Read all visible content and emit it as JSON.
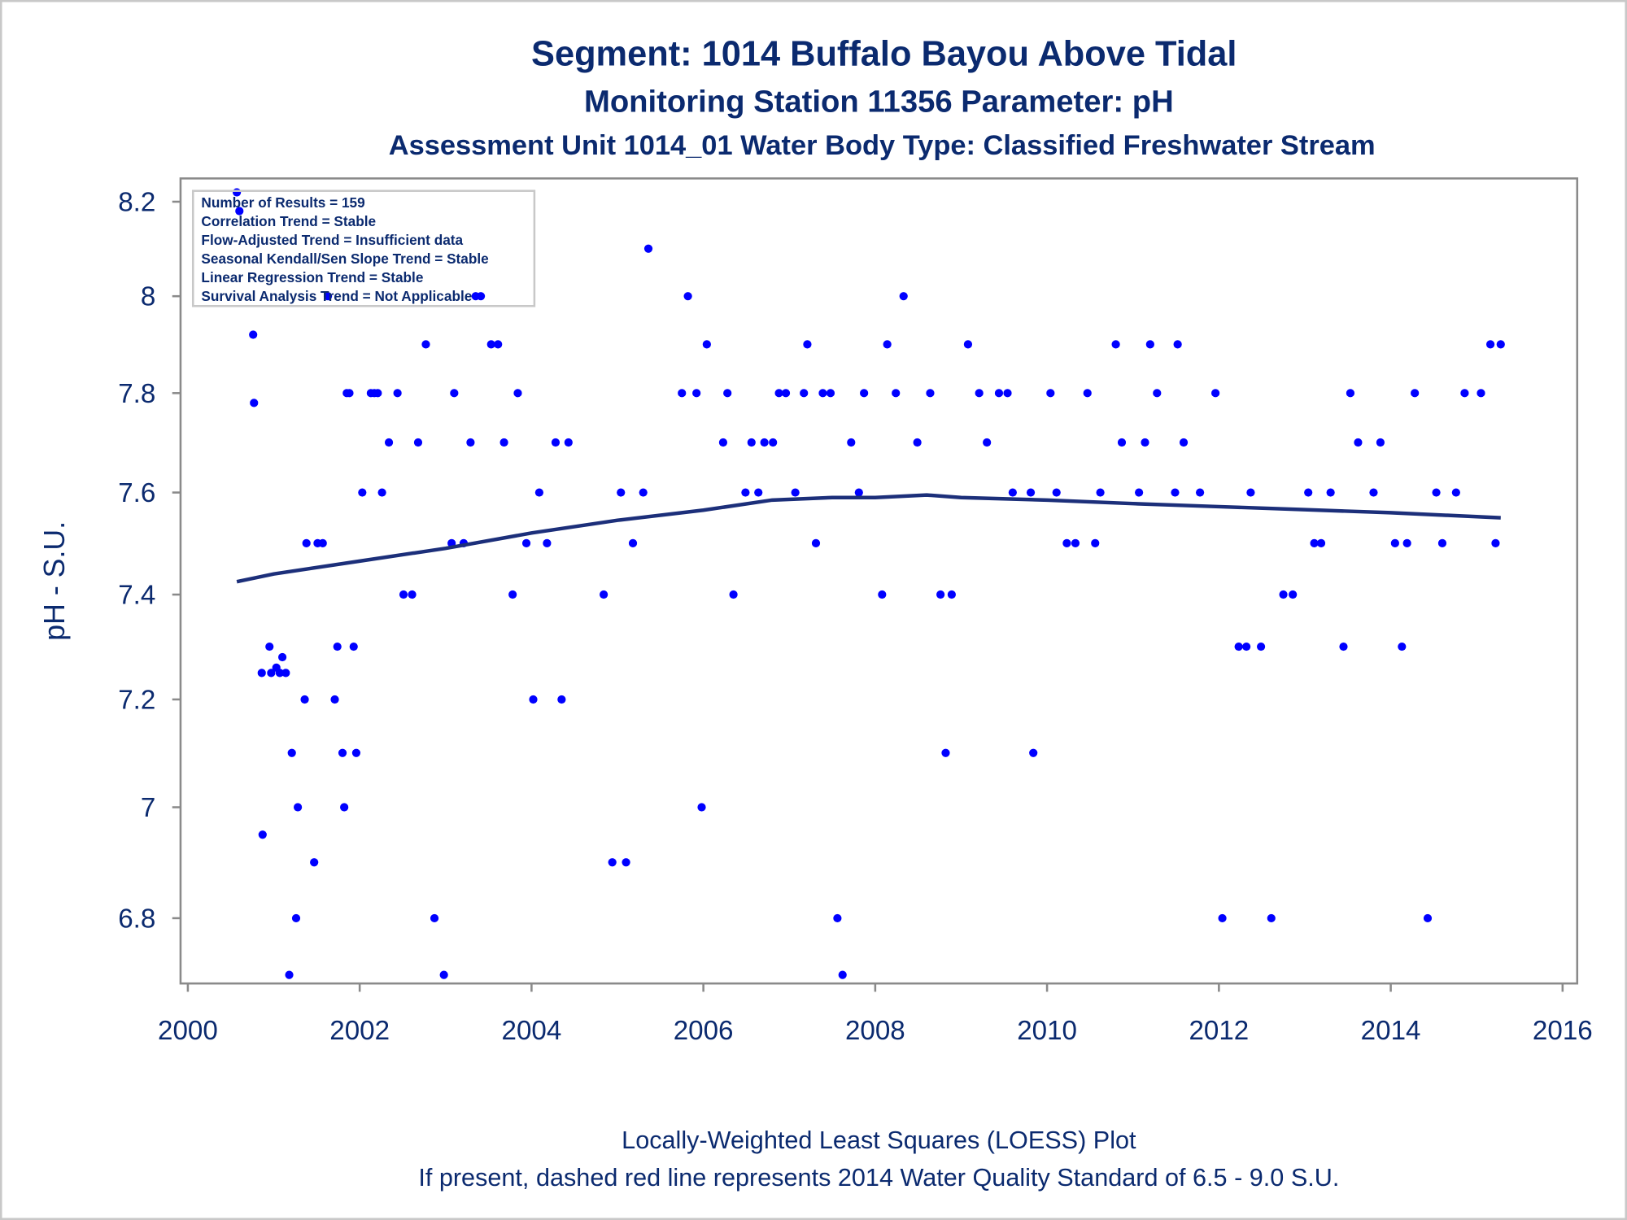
{
  "chart_data": {
    "type": "scatter",
    "title": "Segment: 1014  Buffalo Bayou Above Tidal",
    "subtitle": "Monitoring Station 11356 Parameter: pH",
    "subtitle2": "Assessment Unit 1014_01   Water Body Type: Classified Freshwater Stream",
    "y_label": "pH - S.U.",
    "annotations": [
      "Number of Results = 159",
      "Correlation Trend = Stable",
      "Flow-Adjusted Trend = Insufficient data",
      "Seasonal Kendall/Sen Slope Trend = Stable",
      "Linear Regression Trend = Stable",
      "Survival Analysis Trend = Not Applicable"
    ],
    "footnotes": [
      "Locally-Weighted Least Squares (LOESS) Plot",
      "If present, dashed red line represents 2014 Water Quality Standard of 6.5 - 9.0 S.U."
    ],
    "xlim": [
      1999.915,
      2016.17
    ],
    "xticks": [
      2000,
      2002,
      2004,
      2006,
      2008,
      2010,
      2012,
      2014,
      2016
    ],
    "ylim": [
      6.685,
      8.25
    ],
    "yticks": [
      6.8,
      7,
      7.2,
      7.4,
      7.6,
      7.8,
      8,
      8.2
    ],
    "ylog": true,
    "grid": false,
    "series": [
      {
        "type": "scatter",
        "color": "#0000ff",
        "x": [
          2000.57,
          2000.6,
          2000.76,
          2000.77,
          2000.86,
          2000.87,
          2000.95,
          2000.97,
          2001.03,
          2001.07,
          2001.1,
          2001.14,
          2001.18,
          2001.21,
          2001.26,
          2001.28,
          2001.36,
          2001.38,
          2001.47,
          2001.51,
          2001.57,
          2001.63,
          2001.71,
          2001.74,
          2001.8,
          2001.82,
          2001.85,
          2001.88,
          2001.93,
          2001.96,
          2002.03,
          2002.13,
          2002.17,
          2002.21,
          2002.26,
          2002.34,
          2002.44,
          2002.51,
          2002.61,
          2002.68,
          2002.77,
          2002.87,
          2002.98,
          2003.07,
          2003.1,
          2003.21,
          2003.29,
          2003.35,
          2003.41,
          2003.53,
          2003.61,
          2003.68,
          2003.78,
          2003.84,
          2003.94,
          2004.02,
          2004.09,
          2004.18,
          2004.28,
          2004.35,
          2004.43,
          2004.84,
          2004.94,
          2005.04,
          2005.1,
          2005.18,
          2005.3,
          2005.36,
          2005.75,
          2005.82,
          2005.92,
          2005.98,
          2006.04,
          2006.23,
          2006.28,
          2006.35,
          2006.49,
          2006.56,
          2006.64,
          2006.71,
          2006.81,
          2006.88,
          2006.96,
          2007.07,
          2007.17,
          2007.21,
          2007.31,
          2007.39,
          2007.48,
          2007.56,
          2007.62,
          2007.72,
          2007.81,
          2007.87,
          2008.08,
          2008.14,
          2008.24,
          2008.33,
          2008.49,
          2008.64,
          2008.76,
          2008.82,
          2008.89,
          2009.08,
          2009.21,
          2009.3,
          2009.44,
          2009.54,
          2009.6,
          2009.81,
          2009.84,
          2010.04,
          2010.11,
          2010.23,
          2010.33,
          2010.47,
          2010.56,
          2010.62,
          2010.8,
          2010.87,
          2011.07,
          2011.14,
          2011.2,
          2011.28,
          2011.49,
          2011.52,
          2011.59,
          2011.78,
          2011.96,
          2012.04,
          2012.23,
          2012.32,
          2012.37,
          2012.49,
          2012.61,
          2012.75,
          2012.86,
          2013.04,
          2013.11,
          2013.19,
          2013.3,
          2013.45,
          2013.53,
          2013.62,
          2013.8,
          2013.88,
          2014.05,
          2014.13,
          2014.19,
          2014.28,
          2014.43,
          2014.53,
          2014.6,
          2014.76,
          2014.86,
          2015.05,
          2015.16,
          2015.22,
          2015.28
        ],
        "values": [
          8.22,
          8.18,
          7.92,
          7.78,
          7.25,
          6.95,
          7.3,
          7.25,
          7.26,
          7.25,
          7.28,
          7.25,
          6.7,
          7.1,
          6.8,
          7.0,
          7.2,
          7.5,
          6.9,
          7.5,
          7.5,
          8.0,
          7.2,
          7.3,
          7.1,
          7.0,
          7.8,
          7.8,
          7.3,
          7.1,
          7.6,
          7.8,
          7.8,
          7.8,
          7.6,
          7.7,
          7.8,
          7.4,
          7.4,
          7.7,
          7.9,
          6.8,
          6.7,
          7.5,
          7.8,
          7.5,
          7.7,
          8.0,
          8.0,
          7.9,
          7.9,
          7.7,
          7.4,
          7.8,
          7.5,
          7.2,
          7.6,
          7.5,
          7.7,
          7.2,
          7.7,
          7.4,
          6.9,
          7.6,
          6.9,
          7.5,
          7.6,
          8.1,
          7.8,
          8.0,
          7.8,
          7.0,
          7.9,
          7.7,
          7.8,
          7.4,
          7.6,
          7.7,
          7.6,
          7.7,
          7.7,
          7.8,
          7.8,
          7.6,
          7.8,
          7.9,
          7.5,
          7.8,
          7.8,
          6.8,
          6.7,
          7.7,
          7.6,
          7.8,
          7.4,
          7.9,
          7.8,
          8.0,
          7.7,
          7.8,
          7.4,
          7.1,
          7.4,
          7.9,
          7.8,
          7.7,
          7.8,
          7.8,
          7.6,
          7.6,
          7.1,
          7.8,
          7.6,
          7.5,
          7.5,
          7.8,
          7.5,
          7.6,
          7.9,
          7.7,
          7.6,
          7.7,
          7.9,
          7.8,
          7.6,
          7.9,
          7.7,
          7.6,
          7.8,
          6.8,
          7.3,
          7.3,
          7.6,
          7.3,
          6.8,
          7.4,
          7.4,
          7.6,
          7.5,
          7.5,
          7.6,
          7.3,
          7.8,
          7.7,
          7.6,
          7.7,
          7.5,
          7.3,
          7.5,
          7.8,
          6.8,
          7.6,
          7.5,
          7.6,
          7.8,
          7.8,
          7.9,
          7.5,
          7.9
        ]
      },
      {
        "type": "line",
        "color": "#1c2f7a",
        "x": [
          2000.57,
          2001,
          2002,
          2003,
          2004,
          2005,
          2006,
          2006.8,
          2007.5,
          2008,
          2008.6,
          2009,
          2010,
          2011,
          2012,
          2013,
          2014,
          2015.28
        ],
        "values": [
          7.425,
          7.44,
          7.465,
          7.49,
          7.52,
          7.545,
          7.565,
          7.585,
          7.59,
          7.59,
          7.595,
          7.59,
          7.585,
          7.578,
          7.572,
          7.566,
          7.56,
          7.55
        ]
      }
    ]
  }
}
